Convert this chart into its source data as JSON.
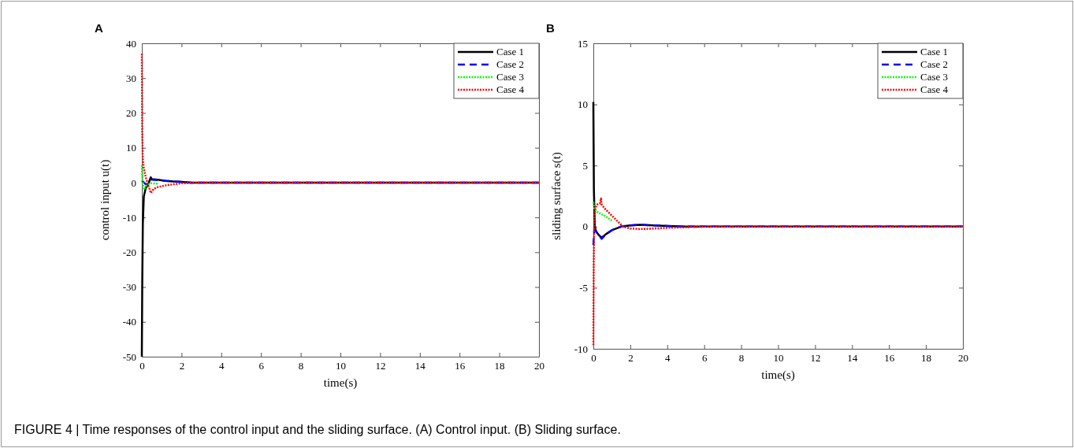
{
  "chart_data": [
    {
      "type": "line",
      "title": "A",
      "xlabel": "time(s)",
      "ylabel": "control input u(t)",
      "xlim": [
        0,
        20
      ],
      "ylim": [
        -50,
        40
      ],
      "xticks": [
        0,
        2,
        4,
        6,
        8,
        10,
        12,
        14,
        16,
        18,
        20
      ],
      "yticks": [
        -50,
        -40,
        -30,
        -20,
        -10,
        0,
        10,
        20,
        30,
        40
      ],
      "legend": "top right",
      "grid": false,
      "series": [
        {
          "name": "Case 1",
          "color": "#000000",
          "line_style": "solid",
          "x": [
            0,
            0.02,
            0.05,
            0.1,
            0.2,
            0.3,
            0.45,
            0.5,
            0.8,
            1.2,
            1.6,
            2,
            2.5,
            3,
            4,
            6,
            10,
            15,
            20
          ],
          "values": [
            -50,
            -30,
            -12,
            -4,
            -1.5,
            -0.8,
            1.5,
            1,
            0.8,
            0.5,
            0.3,
            0.2,
            0,
            0,
            0,
            0,
            0,
            0,
            0
          ]
        },
        {
          "name": "Case 2",
          "color": "#0000ff",
          "line_style": "dashed",
          "x": [
            0,
            0.05,
            0.1,
            0.2,
            0.3,
            0.45,
            0.5,
            0.8,
            1.2,
            1.6,
            2,
            2.5,
            3,
            4,
            6,
            10,
            15,
            20
          ],
          "values": [
            0.5,
            0.3,
            0,
            -0.5,
            -0.3,
            0.8,
            0.8,
            0.7,
            0.5,
            0.3,
            0.2,
            0,
            0,
            0,
            0,
            0,
            0,
            0
          ]
        },
        {
          "name": "Case 3",
          "color": "#00ff00",
          "line_style": "dotted",
          "x": [
            0,
            0.03,
            0.1,
            0.2,
            0.3,
            0.45,
            0.8
          ],
          "values": [
            5,
            1,
            -2,
            -1,
            -0.5,
            -0.2,
            -0.3
          ]
        },
        {
          "name": "Case 4",
          "color": "#ff0000",
          "line_style": "dotted",
          "x": [
            0,
            0.02,
            0.05,
            0.1,
            0.2,
            0.3,
            0.4,
            0.45,
            0.6,
            0.8,
            1.2,
            1.6,
            2,
            2.5,
            3,
            4,
            6,
            10,
            15,
            20
          ],
          "values": [
            37,
            15,
            7,
            4,
            1.5,
            -0.5,
            -2,
            -3,
            -1.8,
            -1.3,
            -0.8,
            -0.5,
            -0.2,
            -0.1,
            0,
            0,
            0,
            0,
            0,
            0
          ]
        }
      ],
      "annotations": [
        "FIGURE 4 | Time responses of the control input and the sliding surface. (A) Control input. (B) Sliding surface."
      ]
    },
    {
      "type": "line",
      "title": "B",
      "xlabel": "time(s)",
      "ylabel": "sliding surface s(t)",
      "xlim": [
        0,
        20
      ],
      "ylim": [
        -10,
        15
      ],
      "xticks": [
        0,
        2,
        4,
        6,
        8,
        10,
        12,
        14,
        16,
        18,
        20
      ],
      "yticks": [
        -10,
        -5,
        0,
        5,
        10,
        15
      ],
      "legend": "top right",
      "grid": false,
      "series": [
        {
          "name": "Case 1",
          "color": "#000000",
          "line_style": "solid",
          "x": [
            0,
            0.03,
            0.08,
            0.15,
            0.3,
            0.45,
            0.7,
            1,
            1.5,
            2,
            2.5,
            3,
            4,
            5,
            6,
            10,
            15,
            20
          ],
          "values": [
            10.2,
            3,
            0,
            -0.4,
            -0.7,
            -0.9,
            -0.6,
            -0.3,
            0,
            0.1,
            0.15,
            0.12,
            0.05,
            0,
            0,
            0,
            0,
            0
          ]
        },
        {
          "name": "Case 2",
          "color": "#0000ff",
          "line_style": "dashed",
          "x": [
            0,
            0.05,
            0.15,
            0.3,
            0.45,
            0.7,
            1,
            1.5,
            2,
            2.5,
            3,
            4,
            5,
            6,
            10,
            15,
            20
          ],
          "values": [
            -1.5,
            -0.3,
            -0.4,
            -0.7,
            -1,
            -0.6,
            -0.3,
            0,
            0.1,
            0.15,
            0.12,
            0.05,
            0,
            0,
            0,
            0,
            0
          ]
        },
        {
          "name": "Case 3",
          "color": "#00ff00",
          "line_style": "dotted",
          "x": [
            0,
            0.05,
            0.2,
            0.6,
            1
          ],
          "values": [
            2,
            1.5,
            1.2,
            0.9,
            0.5
          ]
        },
        {
          "name": "Case 4",
          "color": "#ff0000",
          "line_style": "dotted",
          "x": [
            0,
            0.02,
            0.05,
            0.1,
            0.2,
            0.35,
            0.42,
            0.45,
            0.6,
            0.8,
            1.2,
            1.6,
            2,
            2.5,
            3,
            4,
            5,
            6,
            10,
            15,
            20
          ],
          "values": [
            -9.7,
            -3,
            0.5,
            1.5,
            1.8,
            1.9,
            2.3,
            1.8,
            1.5,
            1.2,
            0.6,
            0,
            -0.15,
            -0.2,
            -0.18,
            -0.1,
            -0.05,
            0,
            0,
            0,
            0
          ]
        }
      ]
    }
  ]
}
